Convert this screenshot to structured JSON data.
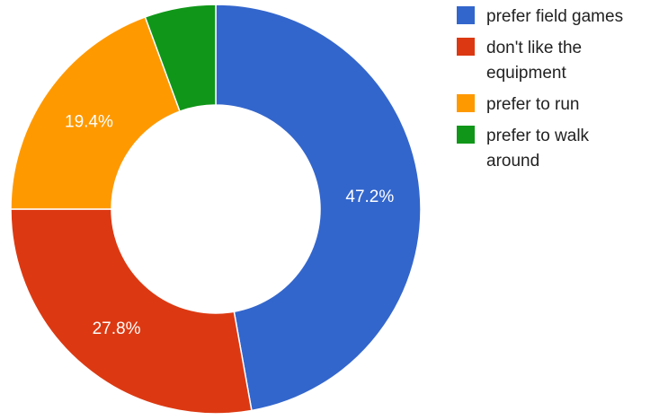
{
  "chart_data": {
    "type": "pie",
    "donut": true,
    "title": "",
    "legend_position": "right",
    "series": [
      {
        "name": "prefer field games",
        "value": 47.2,
        "label": "47.2%",
        "color": "#3366cc",
        "legend_lines": [
          "prefer field games"
        ]
      },
      {
        "name": "don't like the equipment",
        "value": 27.8,
        "label": "27.8%",
        "color": "#dc3912",
        "legend_lines": [
          "don't like the",
          "equipment"
        ]
      },
      {
        "name": "prefer to run",
        "value": 19.4,
        "label": "19.4%",
        "color": "#ff9900",
        "legend_lines": [
          "prefer to run"
        ]
      },
      {
        "name": "prefer to walk around",
        "value": 5.6,
        "label": "",
        "color": "#109618",
        "legend_lines": [
          "prefer to walk",
          "around"
        ]
      }
    ]
  }
}
